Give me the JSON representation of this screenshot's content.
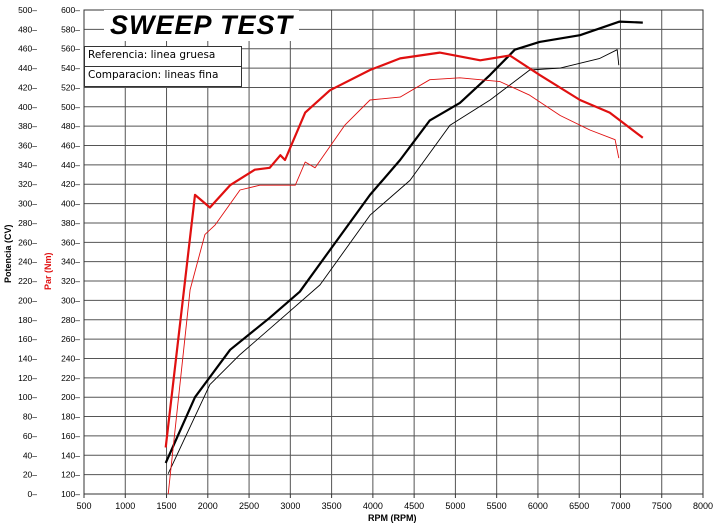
{
  "chart_data": {
    "type": "line",
    "title": "SWEEP TEST",
    "legend": [
      "Referencia: linea gruesa",
      "Comparacion: lineas fina"
    ],
    "legend_placement": "top-left",
    "xlabel": "RPM (RPM)",
    "ylabel_left": "Potencia (CV)",
    "ylabel_right_inner": "Par (Nm)",
    "xlim": [
      500,
      8000
    ],
    "ylim_power": [
      0,
      500
    ],
    "ylim_torque": [
      100,
      600
    ],
    "x_ticks": [
      500,
      1000,
      1500,
      2000,
      2500,
      3000,
      3500,
      4000,
      4500,
      5000,
      5500,
      6000,
      6500,
      7000,
      7500,
      8000
    ],
    "power_ticks": [
      0,
      20,
      40,
      60,
      80,
      100,
      120,
      140,
      160,
      180,
      200,
      220,
      240,
      260,
      280,
      300,
      320,
      340,
      360,
      380,
      400,
      420,
      440,
      460,
      480,
      500
    ],
    "torque_ticks": [
      100,
      120,
      140,
      160,
      180,
      200,
      220,
      240,
      260,
      280,
      300,
      320,
      340,
      360,
      380,
      400,
      420,
      440,
      460,
      480,
      500,
      520,
      540,
      560,
      580,
      600
    ],
    "grid": true,
    "colors": {
      "power": "#000000",
      "torque": "#e01010"
    },
    "series": [
      {
        "name": "Potencia referencia",
        "axis": "power",
        "weight": "thick",
        "x": [
          1490,
          1845,
          2270,
          2750,
          3115,
          3480,
          3965,
          4330,
          4690,
          5055,
          5420,
          5720,
          6020,
          6510,
          6990,
          7270
        ],
        "y": [
          32,
          100,
          149,
          182,
          209,
          252,
          309,
          345,
          386,
          404,
          433,
          459,
          467,
          474,
          488,
          487
        ]
      },
      {
        "name": "Potencia comparacion",
        "axis": "power",
        "weight": "thin",
        "x": [
          1520,
          2025,
          2390,
          2875,
          3360,
          3965,
          4450,
          4935,
          5420,
          5900,
          6270,
          6750,
          6960,
          6980
        ],
        "y": [
          21,
          113,
          144,
          180,
          216,
          288,
          324,
          381,
          407,
          438,
          440,
          450,
          459,
          443
        ]
      },
      {
        "name": "Par referencia",
        "axis": "torque",
        "weight": "thick",
        "x": [
          1490,
          1845,
          2025,
          2270,
          2570,
          2750,
          2880,
          2935,
          3180,
          3480,
          3965,
          4330,
          4810,
          5300,
          5660,
          6020,
          6510,
          6870,
          7270
        ],
        "y": [
          148,
          409,
          396,
          419,
          435,
          437,
          450,
          445,
          494,
          517,
          538,
          550,
          556,
          548,
          553,
          533,
          507,
          494,
          468
        ]
      },
      {
        "name": "Par comparacion",
        "axis": "torque",
        "weight": "thin",
        "x": [
          1520,
          1785,
          1965,
          2090,
          2390,
          2630,
          3060,
          3180,
          3300,
          3660,
          3965,
          4330,
          4690,
          5055,
          5540,
          5900,
          6270,
          6630,
          6935,
          6980
        ],
        "y": [
          100,
          311,
          368,
          378,
          414,
          419,
          419,
          443,
          437,
          481,
          507,
          510,
          528,
          530,
          526,
          512,
          491,
          476,
          466,
          447
        ]
      }
    ]
  }
}
